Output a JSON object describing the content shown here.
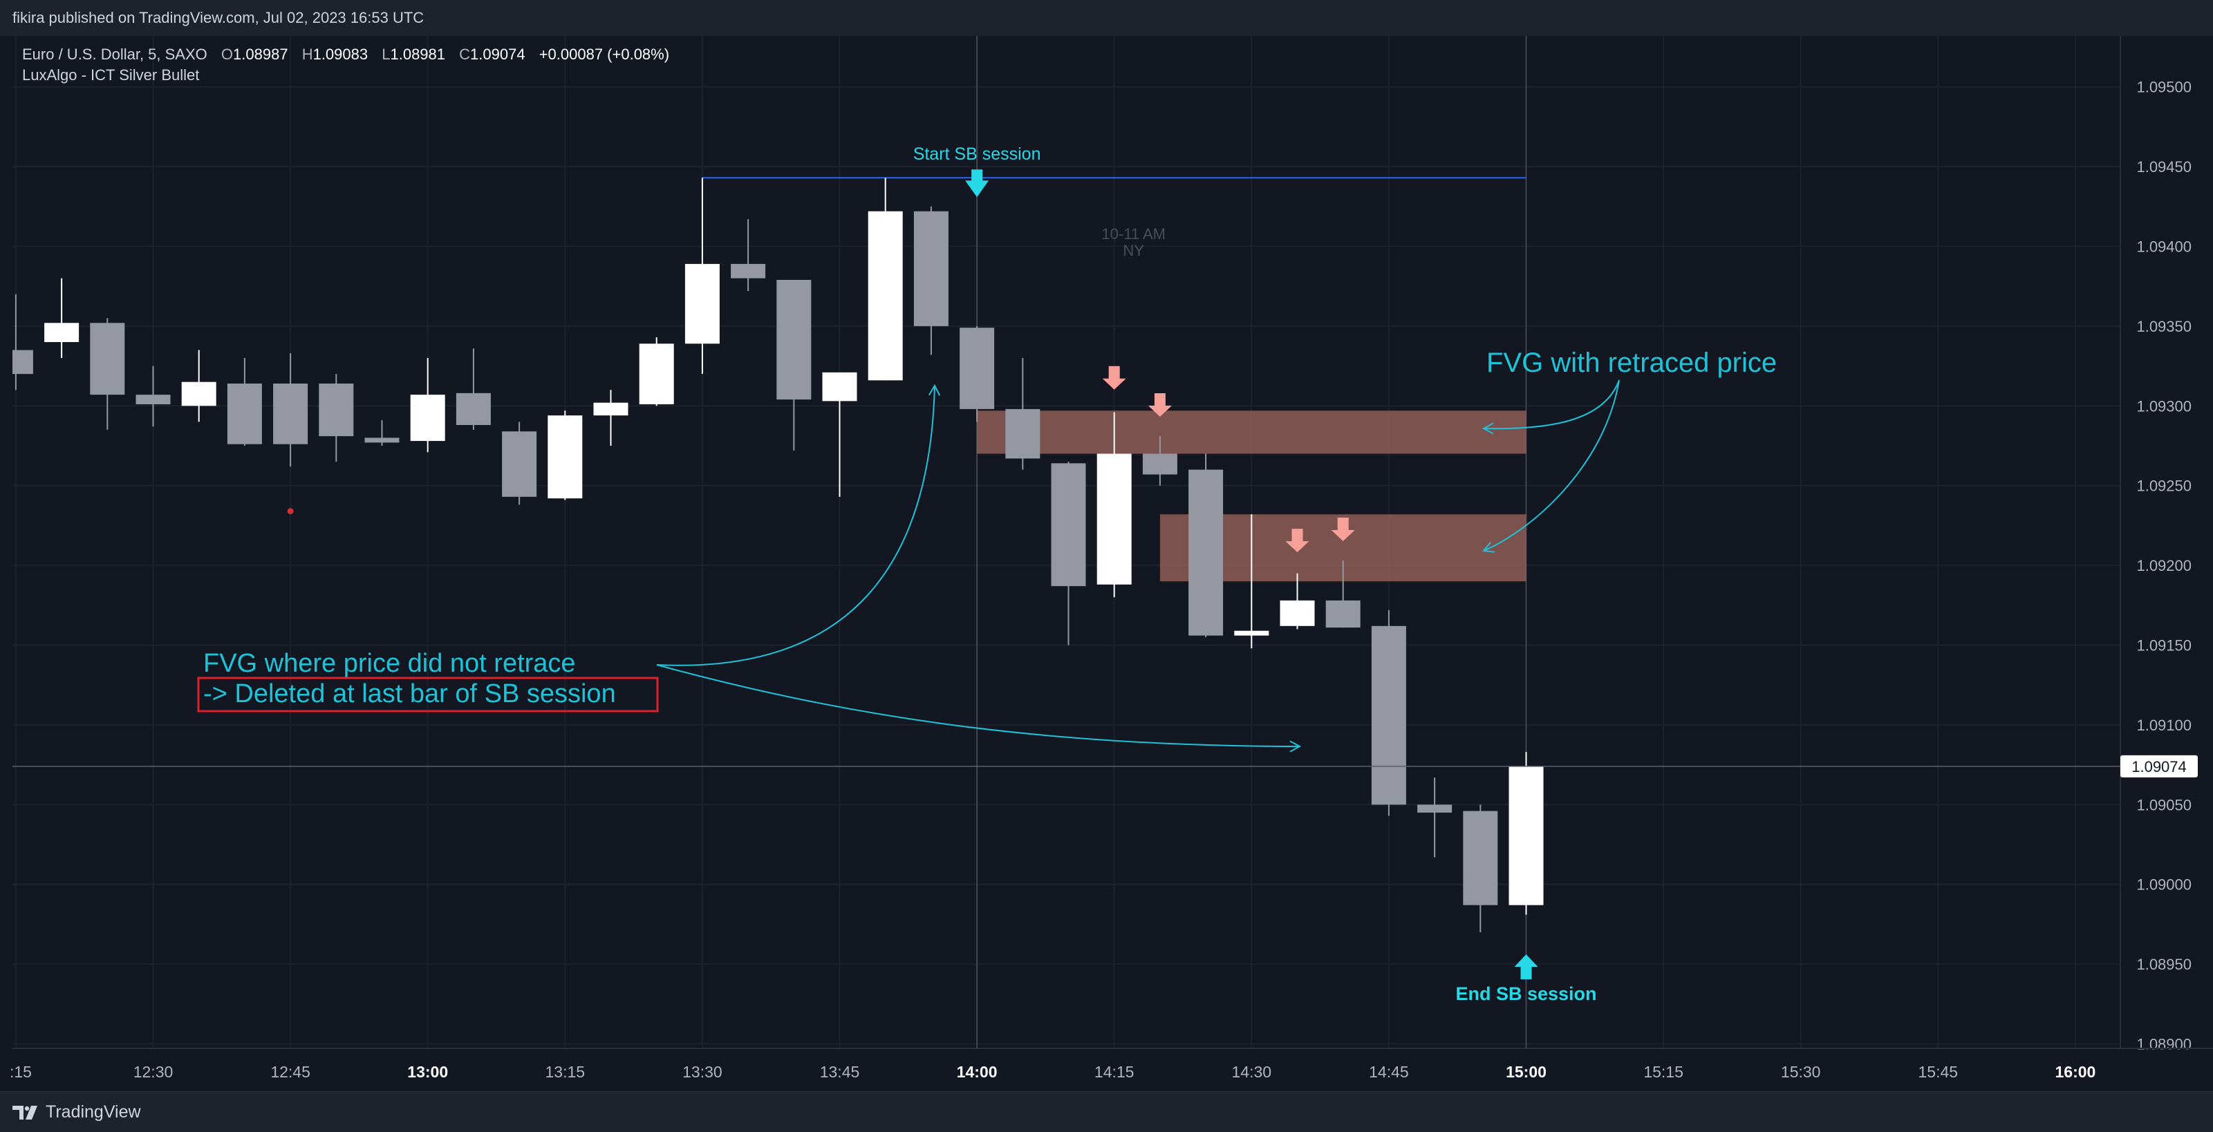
{
  "header": {
    "published": "fikira published on TradingView.com, Jul 02, 2023 16:53 UTC"
  },
  "footer": {
    "brand": "TradingView"
  },
  "legend": {
    "symbol": "Euro / U.S. Dollar, 5, SAXO",
    "open_label": "O",
    "open": "1.08987",
    "high_label": "H",
    "high": "1.09083",
    "low_label": "L",
    "low": "1.08981",
    "close_label": "C",
    "close": "1.09074",
    "change": "+0.00087 (+0.08%)",
    "indicator": "LuxAlgo - ICT Silver Bullet"
  },
  "chart_data": {
    "type": "candlestick",
    "title": "Euro / U.S. Dollar, 5, SAXO",
    "x_unit_minutes": 5,
    "ylim": [
      1.0888,
      1.0952
    ],
    "y_ticks": [
      "1.08900",
      "1.08950",
      "1.09000",
      "1.09050",
      "1.09100",
      "1.09150",
      "1.09200",
      "1.09250",
      "1.09300",
      "1.09350",
      "1.09400",
      "1.09450",
      "1.09500"
    ],
    "x_ticks": [
      {
        "t": -3,
        "label": ":15",
        "bold": false
      },
      {
        "t": 0,
        "label": "12:30",
        "bold": false
      },
      {
        "t": 3,
        "label": "12:45",
        "bold": false
      },
      {
        "t": 6,
        "label": "13:00",
        "bold": true
      },
      {
        "t": 9,
        "label": "13:15",
        "bold": false
      },
      {
        "t": 12,
        "label": "13:30",
        "bold": false
      },
      {
        "t": 15,
        "label": "13:45",
        "bold": false
      },
      {
        "t": 18,
        "label": "14:00",
        "bold": true
      },
      {
        "t": 21,
        "label": "14:15",
        "bold": false
      },
      {
        "t": 24,
        "label": "14:30",
        "bold": false
      },
      {
        "t": 27,
        "label": "14:45",
        "bold": false
      },
      {
        "t": 30,
        "label": "15:00",
        "bold": true
      },
      {
        "t": 33,
        "label": "15:15",
        "bold": false
      },
      {
        "t": 36,
        "label": "15:30",
        "bold": false
      },
      {
        "t": 39,
        "label": "15:45",
        "bold": false
      },
      {
        "t": 42,
        "label": "16:00",
        "bold": true
      }
    ],
    "candles": [
      {
        "t": -3,
        "o": 1.09335,
        "h": 1.0937,
        "l": 1.0931,
        "c": 1.0932
      },
      {
        "t": -2,
        "o": 1.0934,
        "h": 1.0938,
        "l": 1.0933,
        "c": 1.09352
      },
      {
        "t": -1,
        "o": 1.09352,
        "h": 1.09355,
        "l": 1.09285,
        "c": 1.09307
      },
      {
        "t": 0,
        "o": 1.09307,
        "h": 1.09325,
        "l": 1.09287,
        "c": 1.09301
      },
      {
        "t": 1,
        "o": 1.093,
        "h": 1.09335,
        "l": 1.0929,
        "c": 1.09315
      },
      {
        "t": 2,
        "o": 1.09314,
        "h": 1.0933,
        "l": 1.09275,
        "c": 1.09276
      },
      {
        "t": 3,
        "o": 1.09314,
        "h": 1.09333,
        "l": 1.09262,
        "c": 1.09276
      },
      {
        "t": 4,
        "o": 1.09314,
        "h": 1.0932,
        "l": 1.09265,
        "c": 1.09281
      },
      {
        "t": 5,
        "o": 1.0928,
        "h": 1.09291,
        "l": 1.09275,
        "c": 1.09277
      },
      {
        "t": 6,
        "o": 1.09278,
        "h": 1.0933,
        "l": 1.09271,
        "c": 1.09307
      },
      {
        "t": 7,
        "o": 1.09308,
        "h": 1.09336,
        "l": 1.09285,
        "c": 1.09288
      },
      {
        "t": 8,
        "o": 1.09284,
        "h": 1.0929,
        "l": 1.09238,
        "c": 1.09243
      },
      {
        "t": 9,
        "o": 1.09242,
        "h": 1.09297,
        "l": 1.09241,
        "c": 1.09294
      },
      {
        "t": 10,
        "o": 1.09294,
        "h": 1.0931,
        "l": 1.09275,
        "c": 1.09302
      },
      {
        "t": 11,
        "o": 1.09301,
        "h": 1.09343,
        "l": 1.093,
        "c": 1.09339
      },
      {
        "t": 12,
        "o": 1.09339,
        "h": 1.09443,
        "l": 1.0932,
        "c": 1.09389
      },
      {
        "t": 13,
        "o": 1.09389,
        "h": 1.09417,
        "l": 1.09372,
        "c": 1.0938
      },
      {
        "t": 14,
        "o": 1.09379,
        "h": 1.09379,
        "l": 1.09272,
        "c": 1.09304
      },
      {
        "t": 15,
        "o": 1.09303,
        "h": 1.09316,
        "l": 1.09243,
        "c": 1.09321
      },
      {
        "t": 16,
        "o": 1.09316,
        "h": 1.09443,
        "l": 1.09316,
        "c": 1.09422
      },
      {
        "t": 17,
        "o": 1.09422,
        "h": 1.09425,
        "l": 1.09332,
        "c": 1.0935
      },
      {
        "t": 18,
        "o": 1.09349,
        "h": 1.0935,
        "l": 1.0929,
        "c": 1.09298
      },
      {
        "t": 19,
        "o": 1.09298,
        "h": 1.0933,
        "l": 1.0926,
        "c": 1.09267
      },
      {
        "t": 20,
        "o": 1.09264,
        "h": 1.09265,
        "l": 1.0915,
        "c": 1.09187
      },
      {
        "t": 21,
        "o": 1.09188,
        "h": 1.09296,
        "l": 1.0918,
        "c": 1.0927
      },
      {
        "t": 22,
        "o": 1.0927,
        "h": 1.09281,
        "l": 1.0925,
        "c": 1.09257
      },
      {
        "t": 23,
        "o": 1.0926,
        "h": 1.0927,
        "l": 1.09155,
        "c": 1.09156
      },
      {
        "t": 24,
        "o": 1.09156,
        "h": 1.09232,
        "l": 1.09148,
        "c": 1.09159
      },
      {
        "t": 25,
        "o": 1.09162,
        "h": 1.09195,
        "l": 1.0916,
        "c": 1.09178
      },
      {
        "t": 26,
        "o": 1.09178,
        "h": 1.09203,
        "l": 1.09161,
        "c": 1.09161
      },
      {
        "t": 27,
        "o": 1.09162,
        "h": 1.09172,
        "l": 1.09043,
        "c": 1.0905
      },
      {
        "t": 28,
        "o": 1.0905,
        "h": 1.09067,
        "l": 1.09017,
        "c": 1.09045
      },
      {
        "t": 29,
        "o": 1.09046,
        "h": 1.0905,
        "l": 1.0897,
        "c": 1.08987
      },
      {
        "t": 30,
        "o": 1.08987,
        "h": 1.09083,
        "l": 1.08981,
        "c": 1.09074
      }
    ],
    "fvg_boxes": [
      {
        "t_start": 18,
        "t_end": 30,
        "top": 1.09297,
        "bottom": 1.0927
      },
      {
        "t_start": 22,
        "t_end": 30,
        "top": 1.09232,
        "bottom": 1.0919
      }
    ],
    "session": {
      "t_start": 18,
      "t_end": 30,
      "price_top": 1.09443,
      "start_label": "Start SB session",
      "end_label": "End SB session",
      "session_label_1": "10-11 AM",
      "session_label_2": "NY"
    },
    "retrace_markers": [
      {
        "t": 21,
        "price": 1.09305
      },
      {
        "t": 22,
        "price": 1.09288
      },
      {
        "t": 25,
        "price": 1.09203
      },
      {
        "t": 26,
        "price": 1.0921
      }
    ],
    "red_dot": {
      "t": 3,
      "price": 1.09234
    },
    "current_price": {
      "price": 1.09074,
      "label": "1.09074"
    },
    "annotations": {
      "fvg_retraced": "FVG with retraced price",
      "fvg_not_retraced": "FVG where price did not retrace",
      "deleted_note": "-> Deleted at last bar of SB session"
    },
    "colors": {
      "background": "#131722",
      "bull": "#ffffff",
      "bear": "#9598a1",
      "fvg_fill": "#a0675f",
      "session_line": "#2962ff",
      "cyan": "#26d9e6",
      "annotation": "#1fc3d8",
      "salmon": "#f7a099",
      "red_box": "#e0202a",
      "grid": "#1e222d"
    }
  }
}
